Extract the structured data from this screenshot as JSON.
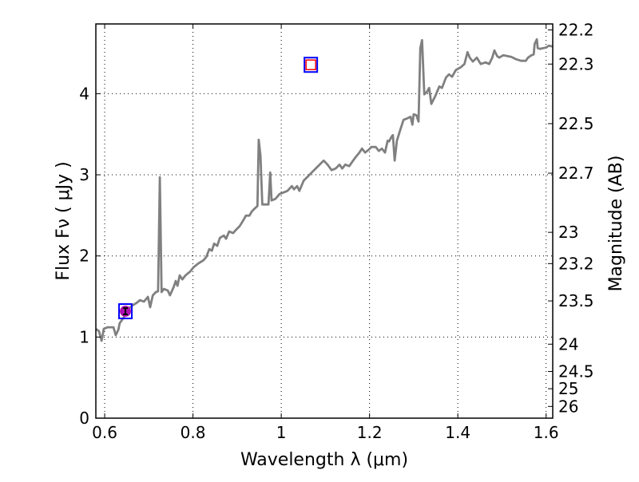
{
  "chart_data": {
    "type": "line",
    "title": "",
    "xlabel": "Wavelength  λ (μm)",
    "ylabel": "Flux  Fν  ( μJy )",
    "ylabel_right": "Magnitude (AB)",
    "xlim": [
      0.58,
      1.615
    ],
    "ylim": [
      0,
      4.86
    ],
    "grid": true,
    "x_ticks": [
      0.6,
      0.8,
      1.0,
      1.2,
      1.4,
      1.6
    ],
    "x_tick_labels": [
      "0.6",
      "0.8",
      "1",
      "1.2",
      "1.4",
      "1.6"
    ],
    "y_ticks": [
      0,
      1,
      2,
      3,
      4
    ],
    "y_tick_labels": [
      "0",
      "1",
      "2",
      "3",
      "4"
    ],
    "right_ticks": [
      22.2,
      22.3,
      22.5,
      22.7,
      23,
      23.2,
      23.5,
      24,
      24.5,
      25,
      26
    ],
    "right_tick_labels": [
      "22.2",
      "22.3",
      "22.5",
      "22.7",
      "23",
      "23.2",
      "23.5",
      "24",
      "24.5",
      "25",
      "26"
    ],
    "series": [
      {
        "name": "spectrum",
        "color": "#808080",
        "x": [
          0.58,
          0.587,
          0.593,
          0.598,
          0.607,
          0.62,
          0.625,
          0.631,
          0.634,
          0.643,
          0.652,
          0.662,
          0.671,
          0.68,
          0.689,
          0.698,
          0.703,
          0.709,
          0.716,
          0.721,
          0.725,
          0.729,
          0.734,
          0.743,
          0.748,
          0.756,
          0.761,
          0.765,
          0.77,
          0.776,
          0.783,
          0.794,
          0.801,
          0.812,
          0.824,
          0.83,
          0.837,
          0.843,
          0.848,
          0.855,
          0.861,
          0.87,
          0.875,
          0.882,
          0.891,
          0.897,
          0.906,
          0.915,
          0.92,
          0.928,
          0.933,
          0.938,
          0.946,
          0.949,
          0.953,
          0.957,
          0.966,
          0.971,
          0.975,
          0.978,
          0.987,
          0.996,
          1.005,
          1.014,
          1.024,
          1.029,
          1.036,
          1.041,
          1.051,
          1.06,
          1.069,
          1.078,
          1.087,
          1.096,
          1.105,
          1.114,
          1.123,
          1.132,
          1.138,
          1.145,
          1.154,
          1.159,
          1.168,
          1.177,
          1.183,
          1.19,
          1.199,
          1.204,
          1.214,
          1.221,
          1.228,
          1.235,
          1.241,
          1.244,
          1.25,
          1.253,
          1.257,
          1.262,
          1.27,
          1.277,
          1.286,
          1.293,
          1.297,
          1.3,
          1.306,
          1.311,
          1.315,
          1.319,
          1.324,
          1.33,
          1.335,
          1.34,
          1.349,
          1.358,
          1.364,
          1.373,
          1.38,
          1.387,
          1.395,
          1.4,
          1.407,
          1.415,
          1.422,
          1.427,
          1.434,
          1.443,
          1.452,
          1.463,
          1.471,
          1.478,
          1.483,
          1.489,
          1.494,
          1.503,
          1.512,
          1.521,
          1.532,
          1.543,
          1.554,
          1.559,
          1.567,
          1.572,
          1.574,
          1.579,
          1.581,
          1.586,
          1.594,
          1.601,
          1.606,
          1.615
        ],
        "y": [
          1.101,
          1.072,
          0.954,
          1.101,
          1.121,
          1.121,
          1.023,
          1.091,
          1.17,
          1.239,
          1.337,
          1.387,
          1.416,
          1.455,
          1.436,
          1.495,
          1.367,
          1.514,
          1.554,
          1.564,
          2.97,
          1.554,
          1.593,
          1.573,
          1.514,
          1.613,
          1.691,
          1.632,
          1.76,
          1.711,
          1.76,
          1.809,
          1.858,
          1.907,
          1.947,
          1.986,
          2.084,
          2.065,
          2.153,
          2.124,
          2.222,
          2.251,
          2.212,
          2.301,
          2.281,
          2.32,
          2.369,
          2.448,
          2.497,
          2.497,
          2.546,
          2.576,
          2.615,
          3.432,
          3.235,
          2.635,
          2.635,
          2.635,
          3.028,
          2.684,
          2.704,
          2.763,
          2.782,
          2.802,
          2.861,
          2.822,
          2.861,
          2.802,
          2.93,
          2.979,
          3.028,
          3.077,
          3.126,
          3.176,
          3.126,
          3.058,
          3.077,
          3.126,
          3.077,
          3.126,
          3.107,
          3.146,
          3.215,
          3.274,
          3.323,
          3.274,
          3.313,
          3.343,
          3.343,
          3.294,
          3.323,
          3.274,
          3.421,
          3.411,
          3.471,
          3.49,
          3.176,
          3.421,
          3.559,
          3.677,
          3.697,
          3.716,
          3.618,
          3.746,
          3.736,
          3.657,
          4.562,
          4.66,
          3.992,
          4.022,
          4.071,
          3.874,
          3.972,
          4.09,
          4.071,
          4.199,
          4.238,
          4.209,
          4.287,
          4.307,
          4.327,
          4.366,
          4.513,
          4.445,
          4.396,
          4.445,
          4.366,
          4.386,
          4.366,
          4.445,
          4.533,
          4.464,
          4.445,
          4.474,
          4.464,
          4.454,
          4.425,
          4.405,
          4.405,
          4.445,
          4.474,
          4.484,
          4.612,
          4.671,
          4.562,
          4.553,
          4.562,
          4.572,
          4.592,
          4.582
        ]
      }
    ],
    "points": [
      {
        "name": "observed-photometry",
        "x": 0.647,
        "y": 1.318,
        "marker": "circle-with-errorbar-in-square",
        "color": "#b010b0",
        "box_color": "#0000ff"
      },
      {
        "name": "model-photometry",
        "x": 1.067,
        "y": 4.356,
        "marker": "square-in-square",
        "color": "#ff0000",
        "box_color": "#0000ff"
      }
    ]
  }
}
